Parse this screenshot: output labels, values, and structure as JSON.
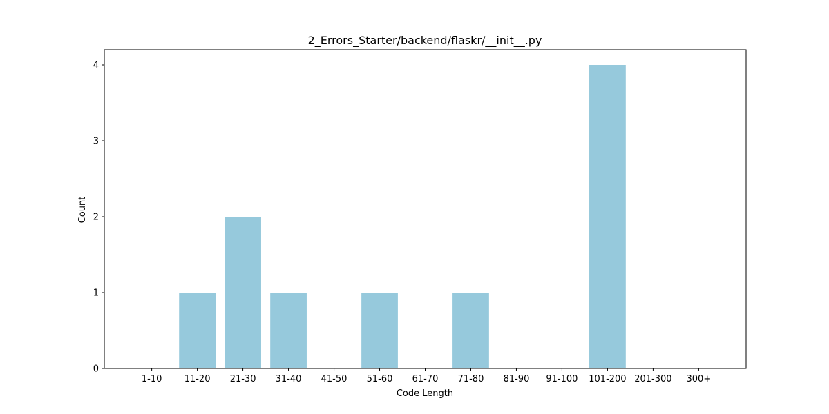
{
  "chart_data": {
    "type": "bar",
    "title": "2_Errors_Starter/backend/flaskr/__init__.py",
    "xlabel": "Code Length",
    "ylabel": "Count",
    "categories": [
      "1-10",
      "11-20",
      "21-30",
      "31-40",
      "41-50",
      "51-60",
      "61-70",
      "71-80",
      "81-90",
      "91-100",
      "101-200",
      "201-300",
      "300+"
    ],
    "values": [
      0,
      1,
      2,
      1,
      0,
      1,
      0,
      1,
      0,
      0,
      4,
      0,
      0
    ],
    "yticks": [
      "0",
      "1",
      "2",
      "3",
      "4"
    ],
    "ylim": [
      0,
      4.2
    ],
    "bar_color": "#96c9dc",
    "grid": false,
    "legend": "none"
  }
}
